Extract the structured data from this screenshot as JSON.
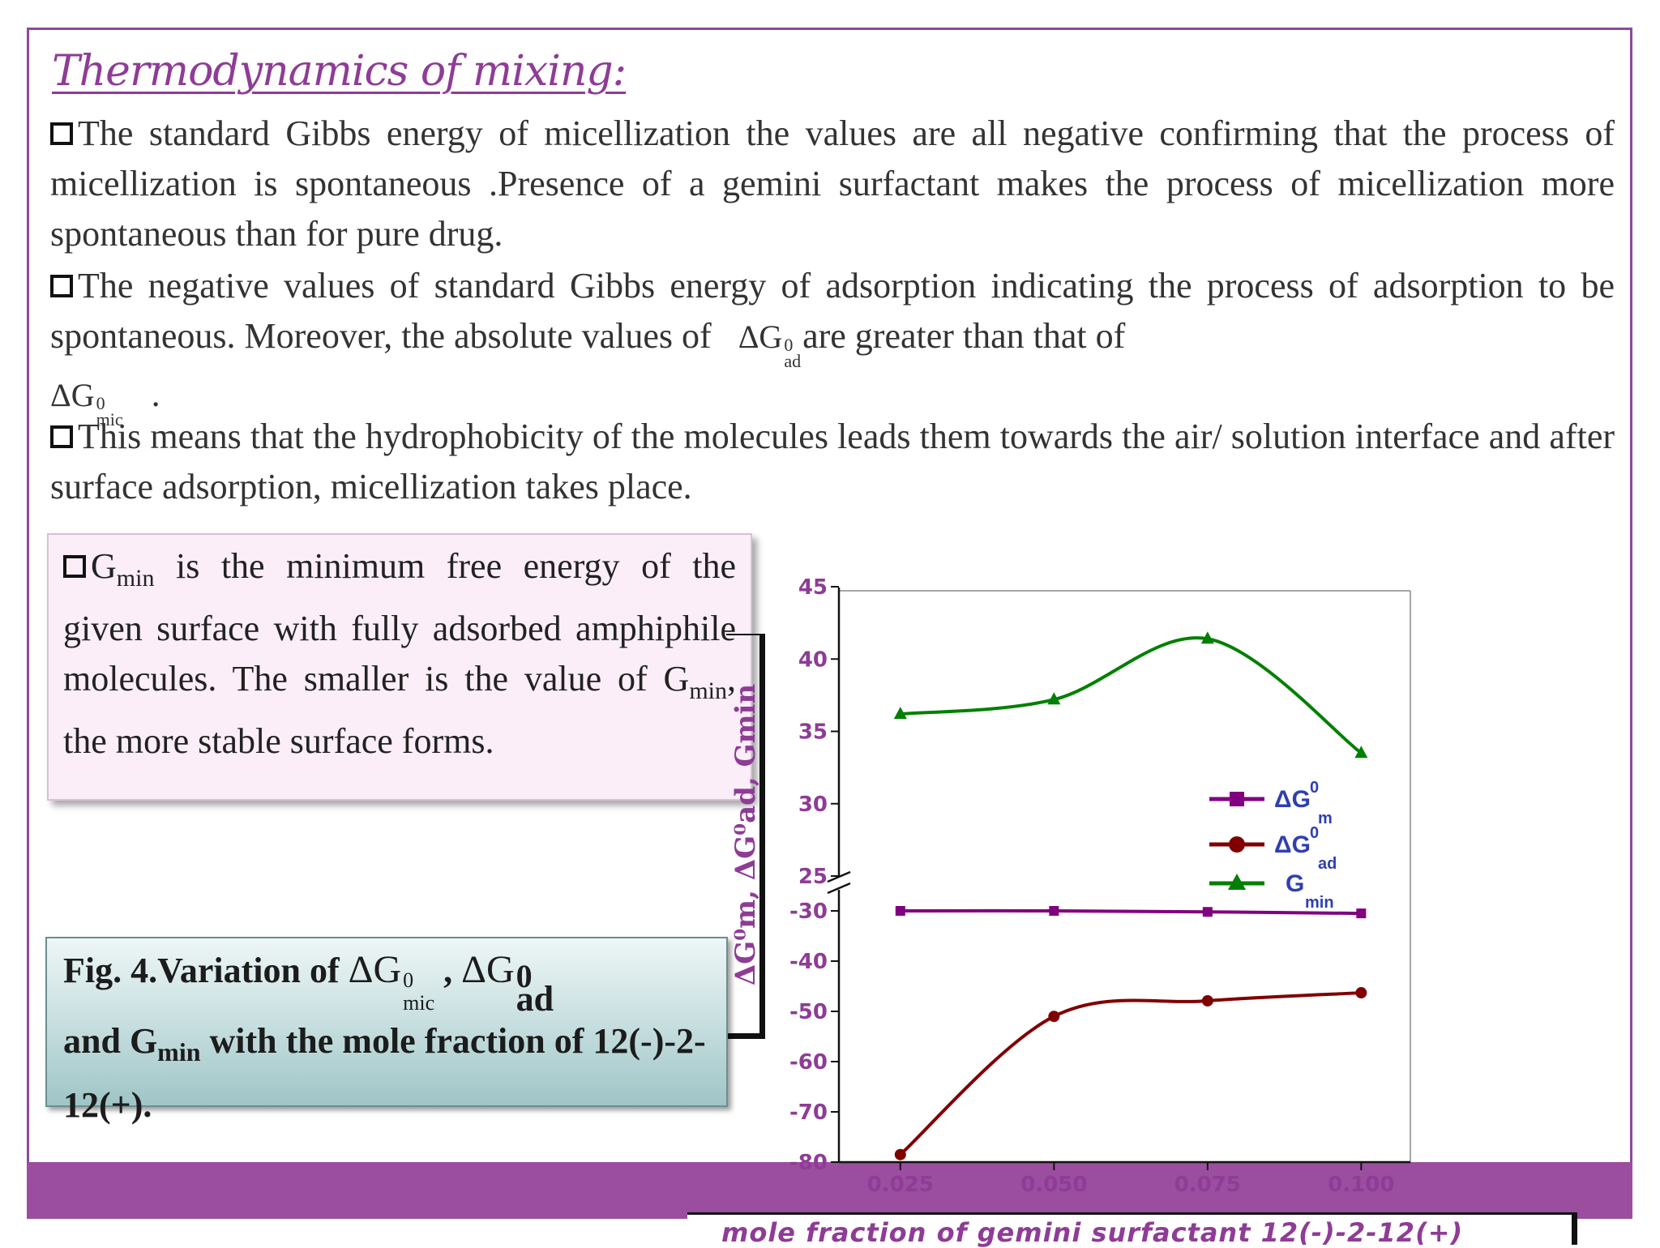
{
  "title": "Thermodynamics of mixing:",
  "paragraphs": {
    "p1": "The standard Gibbs energy of micellization the values are all negative confirming that the process of micellization is spontaneous .Presence of a gemini surfactant makes the process of micellization more spontaneous than for pure drug.",
    "p2_a": "The negative values of standard Gibbs energy of adsorption indicating the process of adsorption to be spontaneous. Moreover, the absolute values of",
    "p2_sym1_base": "ΔG",
    "p2_sym1_sup": "0",
    "p2_sym1_sub": "ad",
    "p2_b": "are greater than that of",
    "p2_sym2_base": "ΔG",
    "p2_sym2_sup": "0",
    "p2_sym2_sub": "mic",
    "p2_end": ".",
    "p3": "This means that the hydrophobicity of the molecules leads them towards the air/ solution interface and after surface adsorption, micellization takes place."
  },
  "gmin_box": {
    "g": "G",
    "sub": "min",
    "text_a": " is the minimum free energy of the given surface with fully adsorbed amphiphile molecules. The smaller is the value of G",
    "sub2": "min",
    "text_b": ", the more stable surface forms."
  },
  "figure_caption": {
    "prefix": "Fig. 4",
    "text_a": ".Variation of ",
    "sym1_base": "ΔG",
    "sym1_sup": "0",
    "sym1_sub": "mic",
    "sep": " , ",
    "sym2_base": "ΔG",
    "sym2_sup": "0",
    "sym2_sub": "ad",
    "text_b": "and G",
    "sub_min": "min",
    "text_c": " with the mole fraction of 12(-)-2-12(+)."
  },
  "chart_data": {
    "type": "line",
    "y_axis_label": "ΔG⁰m, ΔG⁰ad, Gmin",
    "x_axis_label": "mole fraction of gemini surfactant 12(-)-2-12(+)",
    "x_ticks": [
      "0.025",
      "0.050",
      "0.075",
      "0.100"
    ],
    "y_ticks_upper": [
      "45",
      "40",
      "35",
      "30",
      "25"
    ],
    "y_ticks_lower": [
      "-30",
      "-40",
      "-50",
      "-60",
      "-70",
      "-80"
    ],
    "upper_ylim": [
      25,
      45
    ],
    "lower_ylim": [
      -80,
      -30
    ],
    "axis_break": true,
    "x": [
      0.025,
      0.05,
      0.075,
      0.1
    ],
    "series": [
      {
        "name": "ΔG0m",
        "name_base": "ΔG",
        "name_sup": "0",
        "name_sub": "m",
        "marker": "square",
        "color": "#800080",
        "values": [
          -26.5,
          -28.0,
          -30.2,
          -30.5
        ]
      },
      {
        "name": "ΔG0ad",
        "name_base": "ΔG",
        "name_sup": "0",
        "name_sub": "ad",
        "marker": "circle",
        "color": "#800000",
        "values": [
          -78.5,
          -51.0,
          -47.9,
          -46.3
        ]
      },
      {
        "name": "Gmin",
        "name_base": "G",
        "name_sup": "",
        "name_sub": "min",
        "marker": "triangle",
        "color": "#008000",
        "values": [
          36.2,
          37.2,
          41.4,
          33.5
        ]
      }
    ],
    "legend_position": "right",
    "grid": false
  }
}
